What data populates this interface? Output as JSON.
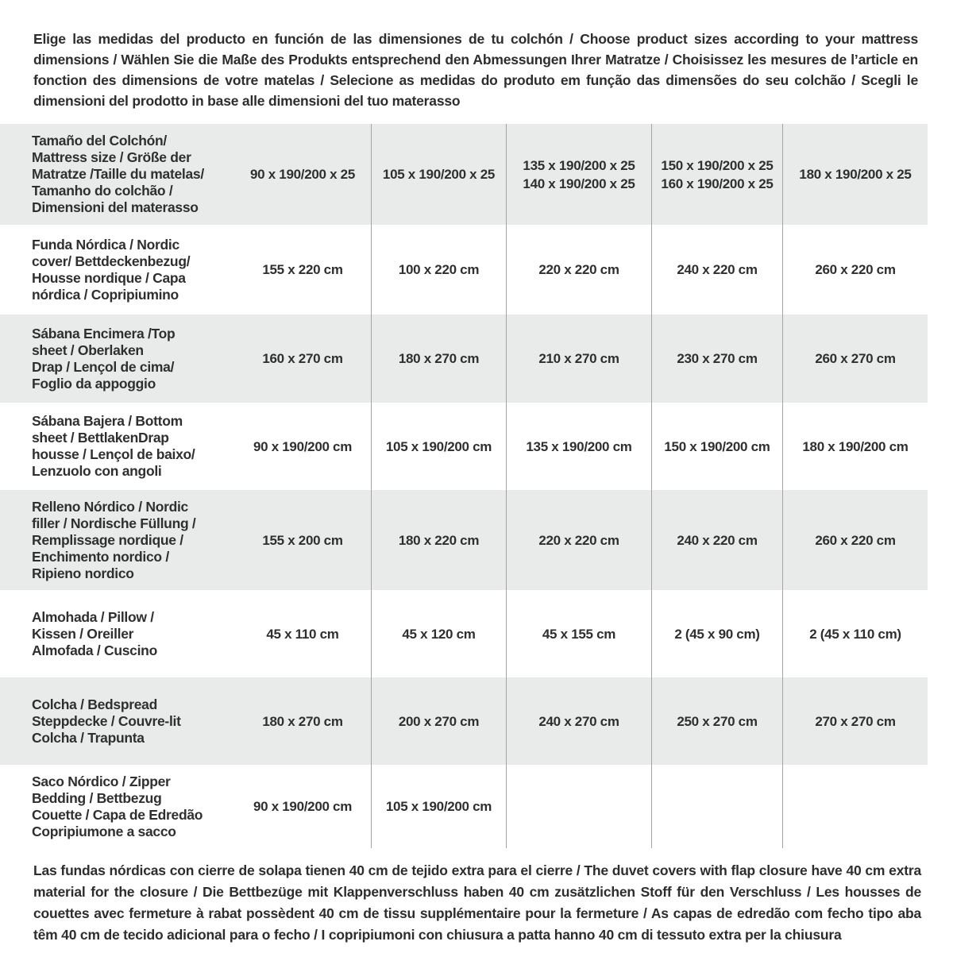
{
  "intro_text": "Elige las medidas del producto en función de las dimensiones de tu colchón / Choose product sizes according to your mattress dimensions / Wählen Sie die Maße des Produkts entsprechend den Abmessungen Ihrer Matratze / Choisissez les mesures de l’article en fonction des dimensions de votre matelas / Selecione as medidas do produto em função das dimensões do seu colchão / Scegli le dimensioni del prodotto in base alle dimensioni del tuo materasso",
  "colors": {
    "row_shade": "#e9eaea",
    "row_plain": "#ffffff",
    "separator": "#a3a3a3",
    "text": "#2d2d2d"
  },
  "table": {
    "header": {
      "label": "Tamaño del Colchón/\nMattress size / Größe der\nMatratze /Taille du matelas/\nTamanho do colchão /\nDimensioni del materasso",
      "values": [
        "90 x 190/200 x 25",
        "105 x 190/200 x 25",
        "135 x 190/200 x 25\n140 x 190/200 x 25",
        "150 x 190/200 x 25\n160 x 190/200 x 25",
        "180 x 190/200 x 25"
      ]
    },
    "rows": [
      {
        "label": "Funda Nórdica /  Nordic\ncover/ Bettdeckenbezug/\nHousse nordique  / Capa\nnórdica / Copripiumino",
        "values": [
          "155 x 220 cm",
          "100 x 220 cm",
          "220 x 220 cm",
          "240 x 220 cm",
          "260 x 220 cm"
        ]
      },
      {
        "label": "Sábana Encimera /Top\nsheet / Oberlaken\nDrap / Lençol de cima/\nFoglio da appoggio",
        "values": [
          "160 x 270 cm",
          "180 x 270 cm",
          "210 x 270 cm",
          "230 x 270 cm",
          "260 x 270 cm"
        ]
      },
      {
        "label": "Sábana Bajera / Bottom\nsheet / BettlakenDrap\nhousse / Lençol de baixo/\nLenzuolo con angoli",
        "values": [
          "90 x 190/200 cm",
          "105 x 190/200 cm",
          "135 x 190/200 cm",
          "150 x 190/200 cm",
          "180 x 190/200 cm"
        ]
      },
      {
        "label": "Relleno Nórdico / Nordic\nfiller / Nordische Füllung /\nRemplissage nordique /\nEnchimento nordico /\nRipieno nordico",
        "values": [
          "155 x 200 cm",
          "180 x 220 cm",
          "220 x 220 cm",
          "240 x 220 cm",
          "260 x 220 cm"
        ]
      },
      {
        "label": "Almohada  / Pillow /\nKissen / Oreiller\nAlmofada / Cuscino",
        "values": [
          "45 x 110 cm",
          "45 x 120 cm",
          "45 x 155 cm",
          "2 (45 x 90 cm)",
          "2 (45 x 110 cm)"
        ]
      },
      {
        "label": "Colcha / Bedspread\nSteppdecke / Couvre-lit\nColcha / Trapunta",
        "values": [
          "180 x 270 cm",
          "200 x 270 cm",
          "240 x 270 cm",
          "250 x 270 cm",
          "270 x 270 cm"
        ]
      },
      {
        "label": "Saco Nórdico / Zipper\nBedding / Bettbezug\nCouette  / Capa de Edredão\nCopripiumone a sacco",
        "values": [
          "90 x 190/200 cm",
          "105 x 190/200 cm",
          "",
          "",
          ""
        ]
      }
    ]
  },
  "footnote_text": "Las fundas nórdicas con cierre de solapa tienen 40 cm de tejido extra para el cierre  /  The duvet covers with flap closure have 40 cm extra material for the closure / Die Bettbezüge mit Klappenverschluss haben 40 cm zusätzlichen Stoff für den Verschluss / Les housses de couettes avec fermeture à rabat possèdent 40 cm de tissu supplémentaire pour la fermeture / As capas de edredão com fecho tipo aba têm 40 cm de tecido adicional para o fecho / I copripiumoni con chiusura a patta hanno 40 cm di tessuto extra per la chiusura"
}
